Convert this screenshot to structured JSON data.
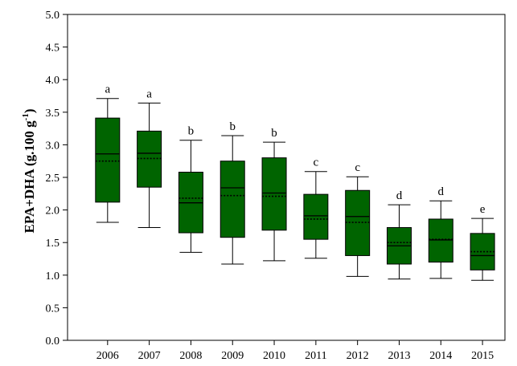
{
  "chart_data": {
    "type": "box",
    "ylabel": "EPA+DHA (g.100 g",
    "ylabel_superscript": "-1",
    "ylabel_close": ")",
    "xlabel": "",
    "ylim": [
      0.0,
      5.0
    ],
    "yticks": [
      "0.0",
      "0.5",
      "1.0",
      "1.5",
      "2.0",
      "2.5",
      "3.0",
      "3.5",
      "4.0",
      "4.5",
      "5.0"
    ],
    "categories": [
      "2006",
      "2007",
      "2008",
      "2009",
      "2010",
      "2011",
      "2012",
      "2013",
      "2014",
      "2015"
    ],
    "box_color": "#006400",
    "boxes": [
      {
        "year": "2006",
        "whisker_low": 1.81,
        "q1": 2.12,
        "median": 2.86,
        "mean": 2.75,
        "q3": 3.41,
        "whisker_high": 3.71,
        "letter": "a"
      },
      {
        "year": "2007",
        "whisker_low": 1.73,
        "q1": 2.35,
        "median": 2.87,
        "mean": 2.79,
        "q3": 3.21,
        "whisker_high": 3.64,
        "letter": "a"
      },
      {
        "year": "2008",
        "whisker_low": 1.35,
        "q1": 1.65,
        "median": 2.11,
        "mean": 2.18,
        "q3": 2.58,
        "whisker_high": 3.07,
        "letter": "b"
      },
      {
        "year": "2009",
        "whisker_low": 1.17,
        "q1": 1.58,
        "median": 2.34,
        "mean": 2.22,
        "q3": 2.75,
        "whisker_high": 3.14,
        "letter": "b"
      },
      {
        "year": "2010",
        "whisker_low": 1.22,
        "q1": 1.69,
        "median": 2.26,
        "mean": 2.21,
        "q3": 2.8,
        "whisker_high": 3.04,
        "letter": "b"
      },
      {
        "year": "2011",
        "whisker_low": 1.26,
        "q1": 1.55,
        "median": 1.91,
        "mean": 1.86,
        "q3": 2.24,
        "whisker_high": 2.59,
        "letter": "c"
      },
      {
        "year": "2012",
        "whisker_low": 0.98,
        "q1": 1.3,
        "median": 1.9,
        "mean": 1.81,
        "q3": 2.3,
        "whisker_high": 2.51,
        "letter": "c"
      },
      {
        "year": "2013",
        "whisker_low": 0.94,
        "q1": 1.17,
        "median": 1.45,
        "mean": 1.5,
        "q3": 1.73,
        "whisker_high": 2.08,
        "letter": "d"
      },
      {
        "year": "2014",
        "whisker_low": 0.95,
        "q1": 1.2,
        "median": 1.54,
        "mean": 1.55,
        "q3": 1.86,
        "whisker_high": 2.14,
        "letter": "d"
      },
      {
        "year": "2015",
        "whisker_low": 0.92,
        "q1": 1.08,
        "median": 1.3,
        "mean": 1.36,
        "q3": 1.64,
        "whisker_high": 1.87,
        "letter": "e"
      }
    ]
  }
}
